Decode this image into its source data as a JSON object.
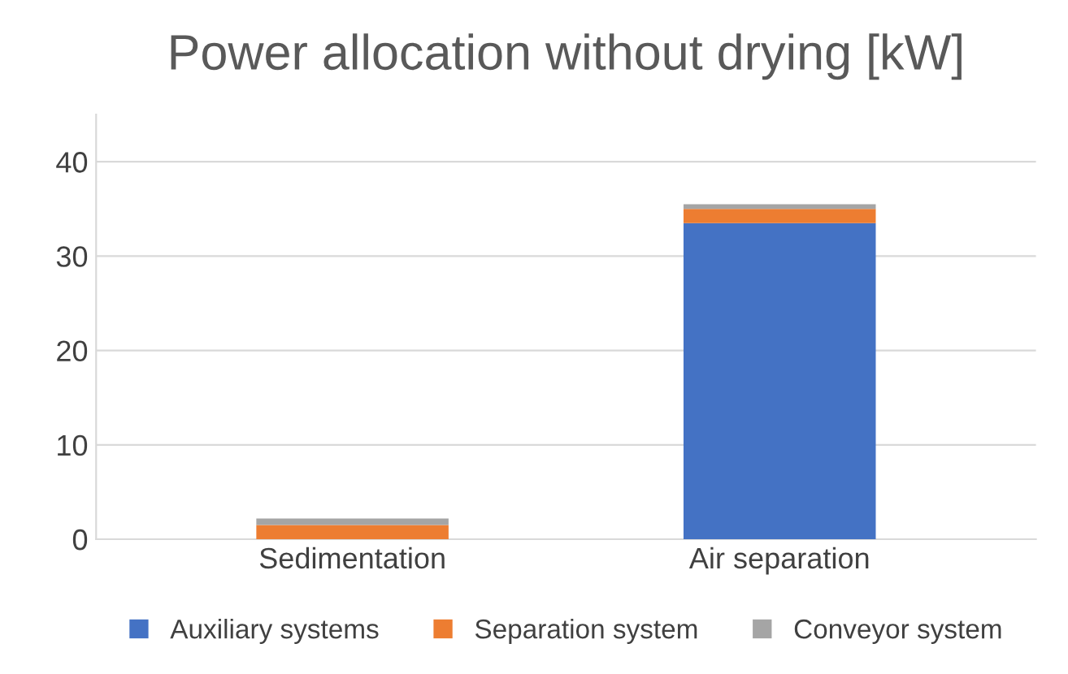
{
  "chart_data": {
    "type": "bar",
    "title": "Power allocation without drying [kW]",
    "categories": [
      "Sedimentation",
      "Air separation"
    ],
    "stacked": true,
    "series": [
      {
        "name": "Auxiliary systems",
        "color": "#4472c4",
        "values": [
          0,
          33.5
        ]
      },
      {
        "name": "Separation system",
        "color": "#ed7d31",
        "values": [
          1.5,
          1.5
        ]
      },
      {
        "name": "Conveyor system",
        "color": "#a5a5a5",
        "values": [
          0.7,
          0.5
        ]
      }
    ],
    "ylim": [
      0,
      45
    ],
    "yticks": [
      0,
      10,
      20,
      30,
      40
    ],
    "grid": "y",
    "legend": "bottom"
  }
}
